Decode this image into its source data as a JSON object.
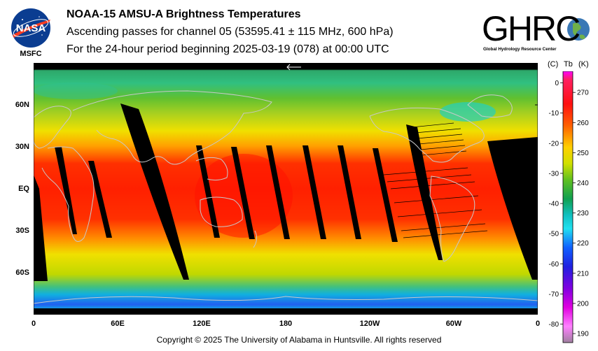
{
  "title": {
    "line1": "NOAA-15 AMSU-A Brightness Temperatures",
    "line2": "Ascending passes for channel 05 (53595.41 ± 115 MHz, 600 hPa)",
    "line3": "For the 24-hour period beginning 2025-03-19 (078) at 00:00 UTC"
  },
  "logos": {
    "nasa": "NASA",
    "msfc": "MSFC",
    "ghrc": "GHRC",
    "ghrc_sub": "Global Hydrology Resource Center"
  },
  "map": {
    "lat_labels": [
      "60N",
      "30N",
      "EQ",
      "30S",
      "60S"
    ],
    "lon_labels": [
      "0",
      "60E",
      "120E",
      "180",
      "120W",
      "60W",
      "0"
    ],
    "colors": {
      "missing": "#000000",
      "coast": "#c8c8c8"
    }
  },
  "colorbar": {
    "header_c": "(C)",
    "header_tb": "Tb",
    "header_k": "(K)",
    "celsius_ticks": [
      "0",
      "-10",
      "-20",
      "-30",
      "-40",
      "-50",
      "-60",
      "-70",
      "-80"
    ],
    "kelvin_ticks": [
      "270",
      "260",
      "250",
      "240",
      "230",
      "220",
      "210",
      "200",
      "190"
    ],
    "range_k": [
      187,
      277
    ]
  },
  "copyright": "Copyright © 2025 The University of Alabama in Huntsville.  All rights reserved"
}
